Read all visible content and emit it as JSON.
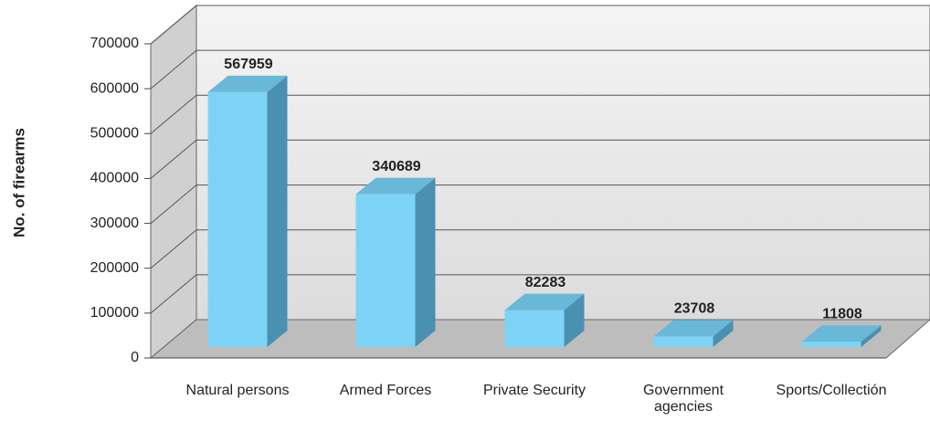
{
  "chart_data": {
    "type": "bar",
    "y_label": "No. of firearms",
    "categories": [
      "Natural persons",
      "Armed Forces",
      "Private Security",
      "Government agencies",
      "Sports/Collectión"
    ],
    "values": [
      567959,
      340689,
      82283,
      23708,
      11808
    ],
    "color": "#7dd3f5",
    "ylim": [
      0,
      700000
    ],
    "yticks": [
      0,
      100000,
      200000,
      300000,
      400000,
      500000,
      600000,
      700000
    ],
    "grid": true
  }
}
